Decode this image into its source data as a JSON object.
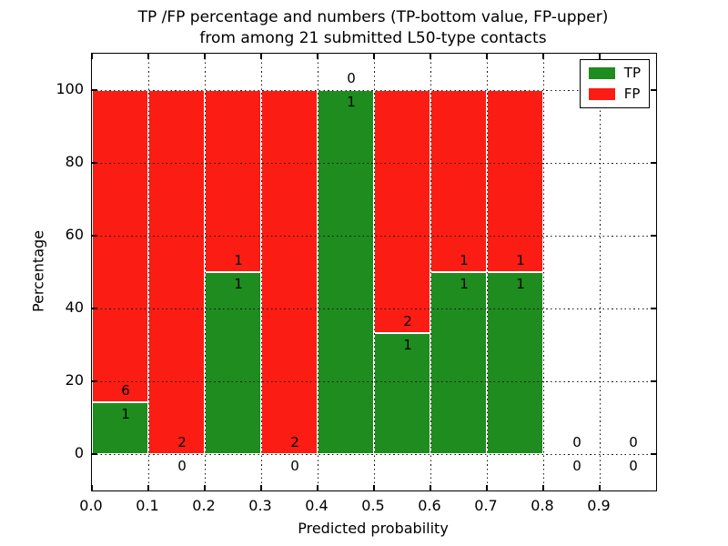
{
  "title": {
    "line1": "TP /FP percentage and numbers (TP-bottom value, FP-upper)",
    "line2": "from among 21 submitted L50-type contacts"
  },
  "chart_data": {
    "type": "bar",
    "stacked": true,
    "orientation": "vertical",
    "xlabel": "Predicted probability",
    "ylabel": "Percentage",
    "xlim": [
      0.0,
      1.0
    ],
    "ylim": [
      -10,
      110
    ],
    "x_ticks": [
      "0.0",
      "0.1",
      "0.2",
      "0.3",
      "0.4",
      "0.5",
      "0.6",
      "0.7",
      "0.8",
      "0.9"
    ],
    "y_ticks": [
      0,
      20,
      40,
      60,
      80,
      100
    ],
    "grid": true,
    "grid_style": "dotted",
    "legend_position": "upper right",
    "bin_edges": [
      0.0,
      0.1,
      0.2,
      0.3,
      0.4,
      0.5,
      0.6,
      0.7,
      0.8,
      0.9,
      1.0
    ],
    "series": [
      {
        "name": "TP",
        "color": "#1e8c1e",
        "counts": [
          1,
          0,
          1,
          0,
          1,
          1,
          1,
          1,
          0,
          0
        ]
      },
      {
        "name": "FP",
        "color": "#fb1d13",
        "counts": [
          6,
          2,
          1,
          2,
          0,
          2,
          1,
          1,
          0,
          0
        ]
      }
    ],
    "bar_percent_tp": [
      14.29,
      0,
      50,
      0,
      100,
      33.33,
      50,
      50,
      0,
      0
    ],
    "bar_percent_total": [
      100,
      100,
      100,
      100,
      100,
      100,
      100,
      100,
      0,
      0
    ]
  },
  "colors": {
    "background": "#ffffff",
    "bar_edge": "#ffffff",
    "grid": "#151515",
    "text": "#000000",
    "spine": "#000000"
  }
}
